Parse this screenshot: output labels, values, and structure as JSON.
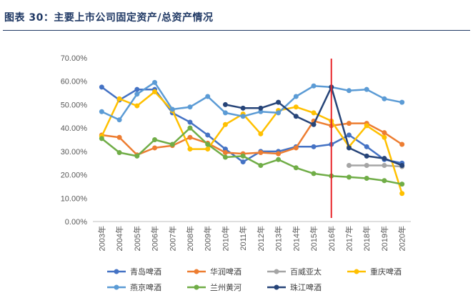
{
  "header": {
    "title": "图表 30：主要上市公司固定资产/总资产情况"
  },
  "colors": {
    "title": "#1f3864",
    "marker_line": "#e8262b"
  },
  "chart_data": {
    "type": "line",
    "title": "",
    "xlabel": "",
    "ylabel": "",
    "ylim": [
      0,
      0.7
    ],
    "yticks": [
      "0.00%",
      "10.00%",
      "20.00%",
      "30.00%",
      "40.00%",
      "50.00%",
      "60.00%",
      "70.00%"
    ],
    "grid": false,
    "legend_position": "bottom",
    "vertical_marker": "2016年",
    "categories": [
      "2003年",
      "2004年",
      "2005年",
      "2006年",
      "2007年",
      "2008年",
      "2009年",
      "2010年",
      "2011年",
      "2012年",
      "2013年",
      "2014年",
      "2015年",
      "2016年",
      "2017年",
      "2018年",
      "2019年",
      "2020年"
    ],
    "series": [
      {
        "name": "青岛啤酒",
        "color": "#4472c4",
        "values": [
          0.575,
          0.52,
          0.565,
          0.565,
          0.465,
          0.425,
          0.37,
          0.31,
          0.255,
          0.3,
          0.3,
          0.32,
          0.32,
          0.33,
          0.37,
          0.32,
          0.265,
          0.25
        ]
      },
      {
        "name": "华润啤酒",
        "color": "#ed7d31",
        "values": [
          0.37,
          0.36,
          0.285,
          0.315,
          0.325,
          0.36,
          0.335,
          0.295,
          0.29,
          0.295,
          0.29,
          0.315,
          0.43,
          0.41,
          0.42,
          0.42,
          0.38,
          0.33
        ]
      },
      {
        "name": "百威亚太",
        "color": "#a5a5a5",
        "values": [
          null,
          null,
          null,
          null,
          null,
          null,
          null,
          null,
          null,
          null,
          null,
          null,
          null,
          null,
          0.24,
          0.24,
          0.24,
          0.235
        ]
      },
      {
        "name": "重庆啤酒",
        "color": "#ffc000",
        "values": [
          0.365,
          0.525,
          0.495,
          0.555,
          0.475,
          0.31,
          0.31,
          0.415,
          0.46,
          0.375,
          0.475,
          0.49,
          0.465,
          0.43,
          0.32,
          0.41,
          0.36,
          0.12
        ]
      },
      {
        "name": "燕京啤酒",
        "color": "#5b9bd5",
        "values": [
          0.47,
          0.435,
          0.545,
          0.595,
          0.48,
          0.49,
          0.535,
          0.465,
          0.45,
          0.47,
          0.465,
          0.535,
          0.58,
          0.575,
          0.56,
          0.565,
          0.525,
          0.51
        ]
      },
      {
        "name": "兰州黄河",
        "color": "#70ad47",
        "values": [
          0.355,
          0.295,
          0.28,
          0.35,
          0.33,
          0.4,
          0.33,
          0.275,
          0.28,
          0.24,
          0.265,
          0.23,
          0.205,
          0.195,
          0.19,
          0.185,
          0.175,
          0.16
        ]
      },
      {
        "name": "珠江啤酒",
        "color": "#264478",
        "values": [
          null,
          null,
          null,
          null,
          null,
          null,
          null,
          0.5,
          0.485,
          0.485,
          0.51,
          0.45,
          0.415,
          0.575,
          0.315,
          0.28,
          0.27,
          0.24
        ]
      }
    ]
  }
}
